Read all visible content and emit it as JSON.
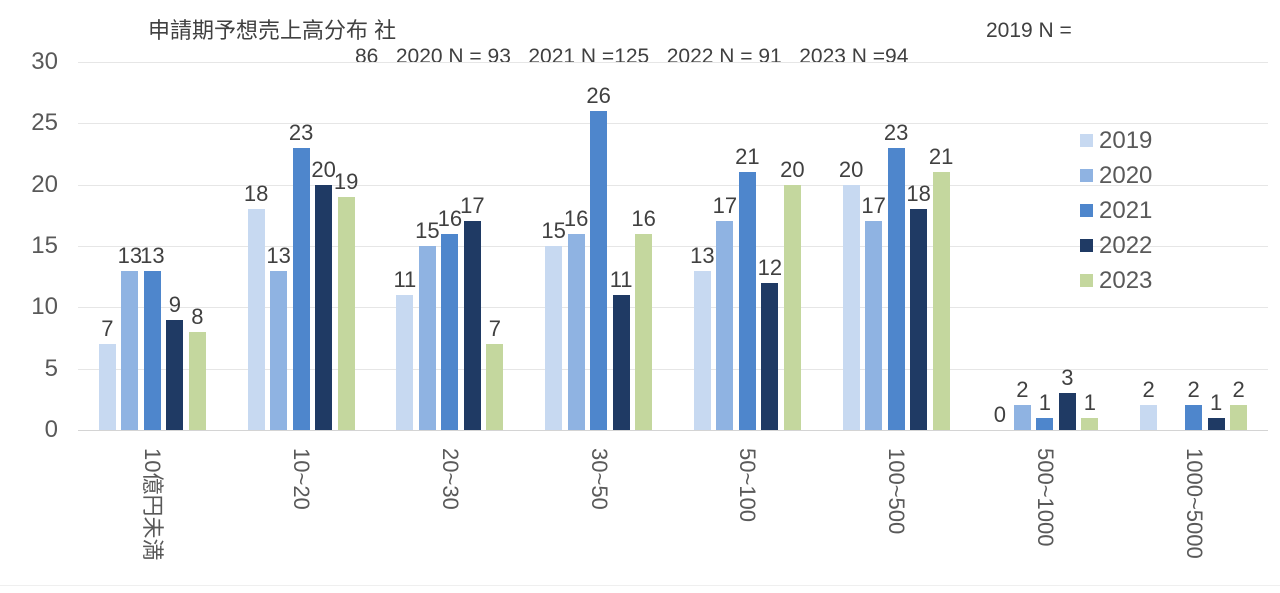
{
  "title": {
    "main": "申請期予想売上高分布 社",
    "right": "2019 N =",
    "line2": "86   2020 N = 93   2021 N =125   2022 N = 91   2023 N =94"
  },
  "chart_data": {
    "type": "bar",
    "title": "申請期予想売上高分布 社  2019 N = 86  2020 N = 93  2021 N =125  2022 N = 91  2023 N =94",
    "xlabel": "",
    "ylabel": "",
    "categories": [
      "10億円未満",
      "10~20",
      "20~30",
      "30~50",
      "50~100",
      "100~500",
      "500~1000",
      "1000~5000"
    ],
    "series": [
      {
        "name": "2019",
        "color": "#C7D9F1",
        "values": [
          7,
          18,
          11,
          15,
          13,
          20,
          0,
          2
        ]
      },
      {
        "name": "2020",
        "color": "#8FB3E2",
        "values": [
          13,
          13,
          15,
          16,
          17,
          17,
          2,
          null
        ]
      },
      {
        "name": "2021",
        "color": "#4E86CC",
        "values": [
          13,
          23,
          16,
          26,
          21,
          23,
          1,
          2
        ]
      },
      {
        "name": "2022",
        "color": "#1F3A64",
        "values": [
          9,
          20,
          17,
          11,
          12,
          18,
          3,
          1
        ]
      },
      {
        "name": "2023",
        "color": "#C4D79E",
        "values": [
          8,
          19,
          7,
          16,
          20,
          21,
          1,
          2
        ]
      }
    ],
    "ylim": [
      0,
      30
    ],
    "yticks": [
      0,
      5,
      10,
      15,
      20,
      25,
      30
    ],
    "grid": true,
    "data_labels": true,
    "legend_position": "right",
    "legend": [
      "2019",
      "2020",
      "2021",
      "2022",
      "2023"
    ],
    "text_color": "#404040",
    "axis_text_color": "#595959",
    "gridline_color": "#E6E6E6"
  }
}
